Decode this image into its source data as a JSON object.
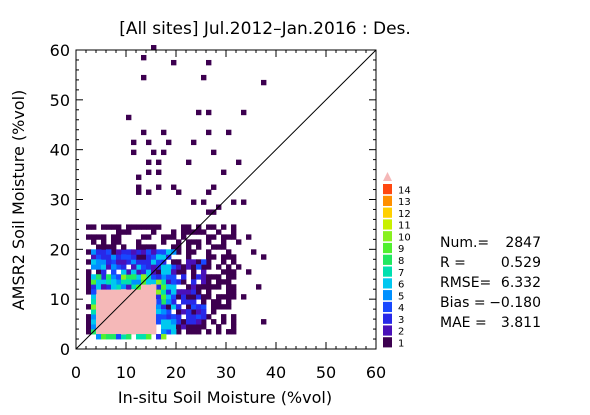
{
  "chart_data": {
    "type": "heatmap",
    "title": "[All sites] Jul.2012–Jan.2016 : Des.",
    "xlabel": "In-situ Soil Moisture (%vol)",
    "ylabel": "AMSR2 Soil Moisture (%vol)",
    "xlim": [
      0,
      60
    ],
    "ylim": [
      0,
      60
    ],
    "x_ticks": [
      "0",
      "10",
      "20",
      "30",
      "40",
      "50",
      "60"
    ],
    "y_ticks": [
      "0",
      "10",
      "20",
      "30",
      "40",
      "50",
      "60"
    ],
    "one_to_one_line": true,
    "bin_size": 1,
    "colorbar": {
      "labels": [
        "1",
        "2",
        "3",
        "4",
        "5",
        "6",
        "7",
        "8",
        "9",
        "10",
        "11",
        "12",
        "13",
        "14"
      ],
      "colors": [
        "#3d0050",
        "#4a10b8",
        "#2828e8",
        "#1848ff",
        "#0090ff",
        "#00c8f0",
        "#00e0b0",
        "#20e860",
        "#50f030",
        "#88f020",
        "#c8f000",
        "#ffd000",
        "#ff9000",
        "#ff4810"
      ],
      "overflow_color": "#f5b8b8"
    },
    "stats": [
      {
        "label": "Num.=",
        "value": "2847"
      },
      {
        "label": "R      =",
        "value": "0.529"
      },
      {
        "label": "RMSE=",
        "value": "6.332"
      },
      {
        "label": "Bias  =",
        "value": "−0.180"
      },
      {
        "label": "MAE   =",
        "value": "3.811"
      }
    ],
    "density_regions": [
      {
        "xmin": 4,
        "xmax": 16,
        "ymin": 3,
        "ymax": 12,
        "level": 15
      },
      {
        "xmin": 3,
        "xmax": 18,
        "ymin": 2,
        "ymax": 15,
        "level": 8
      },
      {
        "xmin": 3,
        "xmax": 20,
        "ymin": 3,
        "ymax": 20,
        "level": 5
      },
      {
        "xmin": 3,
        "xmax": 26,
        "ymin": 4,
        "ymax": 18,
        "level": 3
      },
      {
        "xmin": 2,
        "xmax": 32,
        "ymin": 3,
        "ymax": 25,
        "level": 1
      }
    ],
    "sparse_points": [
      [
        15,
        60
      ],
      [
        13,
        58
      ],
      [
        19,
        57
      ],
      [
        26,
        57
      ],
      [
        13,
        54
      ],
      [
        25,
        54
      ],
      [
        37,
        53
      ],
      [
        10,
        46
      ],
      [
        24,
        47
      ],
      [
        26,
        47
      ],
      [
        33,
        47
      ],
      [
        13,
        43
      ],
      [
        17,
        43
      ],
      [
        26,
        43
      ],
      [
        30,
        43
      ],
      [
        11,
        41
      ],
      [
        14,
        41
      ],
      [
        18,
        41
      ],
      [
        23,
        41
      ],
      [
        11,
        39
      ],
      [
        15,
        39
      ],
      [
        17,
        39
      ],
      [
        27,
        39
      ],
      [
        14,
        37
      ],
      [
        16,
        37
      ],
      [
        22,
        37
      ],
      [
        32,
        37
      ],
      [
        14,
        35
      ],
      [
        16,
        35
      ],
      [
        29,
        35
      ],
      [
        12,
        34
      ],
      [
        12,
        32
      ],
      [
        16,
        32
      ],
      [
        19,
        32
      ],
      [
        27,
        32
      ],
      [
        12,
        31
      ],
      [
        14,
        31
      ],
      [
        20,
        31
      ],
      [
        26,
        31
      ],
      [
        23,
        29
      ],
      [
        25,
        29
      ],
      [
        26,
        27
      ],
      [
        27,
        27
      ],
      [
        28,
        28
      ],
      [
        31,
        29
      ],
      [
        33,
        29
      ],
      [
        19,
        23
      ],
      [
        23,
        23
      ],
      [
        28,
        23
      ],
      [
        30,
        22
      ],
      [
        32,
        21
      ],
      [
        35,
        19
      ],
      [
        37,
        18
      ],
      [
        34,
        22
      ],
      [
        29,
        17
      ],
      [
        32,
        16
      ],
      [
        34,
        15
      ],
      [
        36,
        12
      ],
      [
        31,
        11
      ],
      [
        33,
        10
      ],
      [
        29,
        8
      ],
      [
        37,
        5
      ]
    ],
    "seed": 7
  }
}
